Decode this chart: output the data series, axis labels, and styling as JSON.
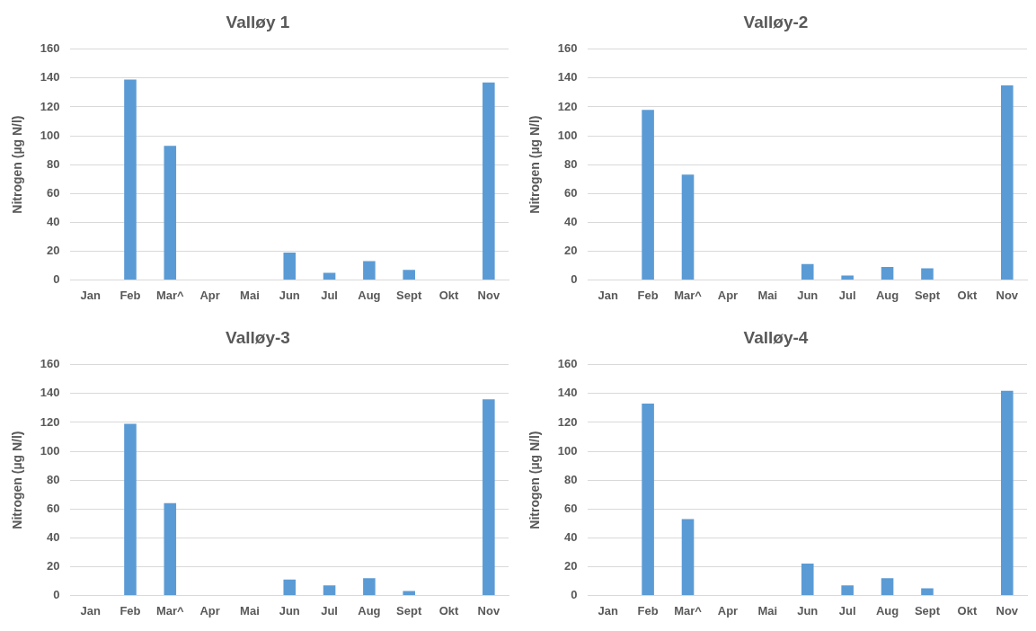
{
  "chart_data": [
    {
      "type": "bar",
      "title": "Valløy 1",
      "ylabel": "Nitrogen (µg N/l)",
      "categories": [
        "Jan",
        "Feb",
        "Mar^",
        "Apr",
        "Mai",
        "Jun",
        "Jul",
        "Aug",
        "Sept",
        "Okt",
        "Nov"
      ],
      "values": [
        null,
        139,
        93,
        null,
        null,
        19,
        5,
        13,
        7,
        null,
        137
      ],
      "color": "#5b9bd5",
      "ylim": [
        0,
        160
      ],
      "yticks": [
        0,
        20,
        40,
        60,
        80,
        100,
        120,
        140,
        160
      ],
      "grid": "y",
      "legend": false
    },
    {
      "type": "bar",
      "title": "Valløy-2",
      "ylabel": "Nitrogen (µg N/l)",
      "categories": [
        "Jan",
        "Feb",
        "Mar^",
        "Apr",
        "Mai",
        "Jun",
        "Jul",
        "Aug",
        "Sept",
        "Okt",
        "Nov"
      ],
      "values": [
        null,
        118,
        73,
        null,
        null,
        11,
        3,
        9,
        8,
        null,
        135
      ],
      "color": "#5b9bd5",
      "ylim": [
        0,
        160
      ],
      "yticks": [
        0,
        20,
        40,
        60,
        80,
        100,
        120,
        140,
        160
      ],
      "grid": "y",
      "legend": false
    },
    {
      "type": "bar",
      "title": "Valløy-3",
      "ylabel": "Nitrogen (µg N/l)",
      "categories": [
        "Jan",
        "Feb",
        "Mar^",
        "Apr",
        "Mai",
        "Jun",
        "Jul",
        "Aug",
        "Sept",
        "Okt",
        "Nov"
      ],
      "values": [
        null,
        119,
        64,
        null,
        null,
        11,
        7,
        12,
        3,
        null,
        136
      ],
      "color": "#5b9bd5",
      "ylim": [
        0,
        160
      ],
      "yticks": [
        0,
        20,
        40,
        60,
        80,
        100,
        120,
        140,
        160
      ],
      "grid": "y",
      "legend": false
    },
    {
      "type": "bar",
      "title": "Valløy-4",
      "ylabel": "Nitrogen (µg N/l)",
      "categories": [
        "Jan",
        "Feb",
        "Mar^",
        "Apr",
        "Mai",
        "Jun",
        "Jul",
        "Aug",
        "Sept",
        "Okt",
        "Nov"
      ],
      "values": [
        null,
        133,
        53,
        null,
        null,
        22,
        7,
        12,
        5,
        null,
        142
      ],
      "color": "#5b9bd5",
      "ylim": [
        0,
        160
      ],
      "yticks": [
        0,
        20,
        40,
        60,
        80,
        100,
        120,
        140,
        160
      ],
      "grid": "y",
      "legend": false
    }
  ]
}
